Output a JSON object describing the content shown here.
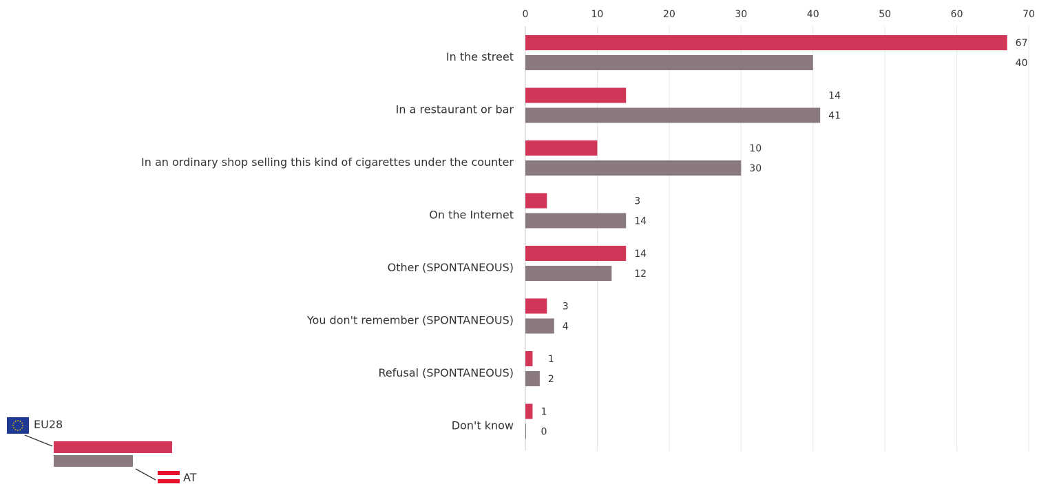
{
  "chart_data": {
    "type": "bar",
    "orientation": "horizontal",
    "xlim": [
      0,
      70
    ],
    "x_ticks": [
      0,
      10,
      20,
      30,
      40,
      50,
      60,
      70
    ],
    "grid": true,
    "categories": [
      "In the street",
      "In a restaurant or bar",
      "In an ordinary shop selling this kind of cigarettes under the counter",
      "On the Internet",
      "Other (SPONTANEOUS)",
      "You don't remember (SPONTANEOUS)",
      "Refusal (SPONTANEOUS)",
      "Don't know"
    ],
    "series": [
      {
        "name": "AT",
        "color": "#d13558",
        "values": [
          67,
          14,
          10,
          3,
          14,
          3,
          1,
          1
        ]
      },
      {
        "name": "EU28",
        "color": "#8a7a7d",
        "values": [
          40,
          41,
          30,
          14,
          12,
          4,
          2,
          0
        ]
      }
    ],
    "legend_position": "bottom-left"
  },
  "legend": {
    "eu_label": "EU28",
    "at_label": "AT",
    "eu_flag_color": "#1f3a93",
    "eu_star_color": "#f2c200",
    "at_flag_red": "#e8112d"
  }
}
